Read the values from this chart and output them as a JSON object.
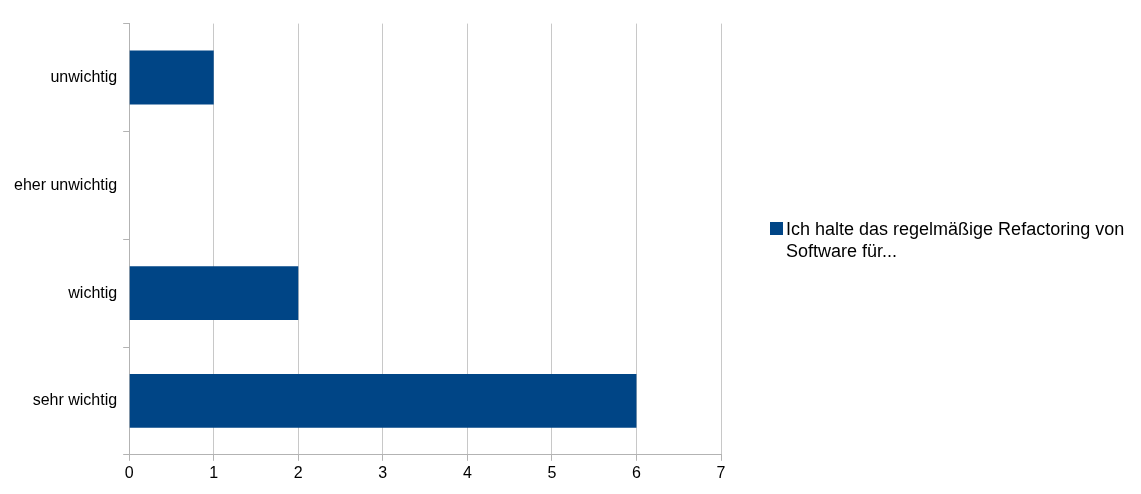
{
  "chart_data": {
    "type": "bar",
    "orientation": "horizontal",
    "categories": [
      "unwichtig",
      "eher unwichtig",
      "wichtig",
      "sehr wichtig"
    ],
    "series": [
      {
        "name": "Ich halte das regelmäßige Refactoring von Software für...",
        "color": "#004586",
        "values": [
          1,
          0,
          2,
          6
        ]
      }
    ],
    "xlim": [
      0,
      7
    ],
    "xticks": [
      0,
      1,
      2,
      3,
      4,
      5,
      6,
      7
    ],
    "grid": "x",
    "legend": "right"
  }
}
